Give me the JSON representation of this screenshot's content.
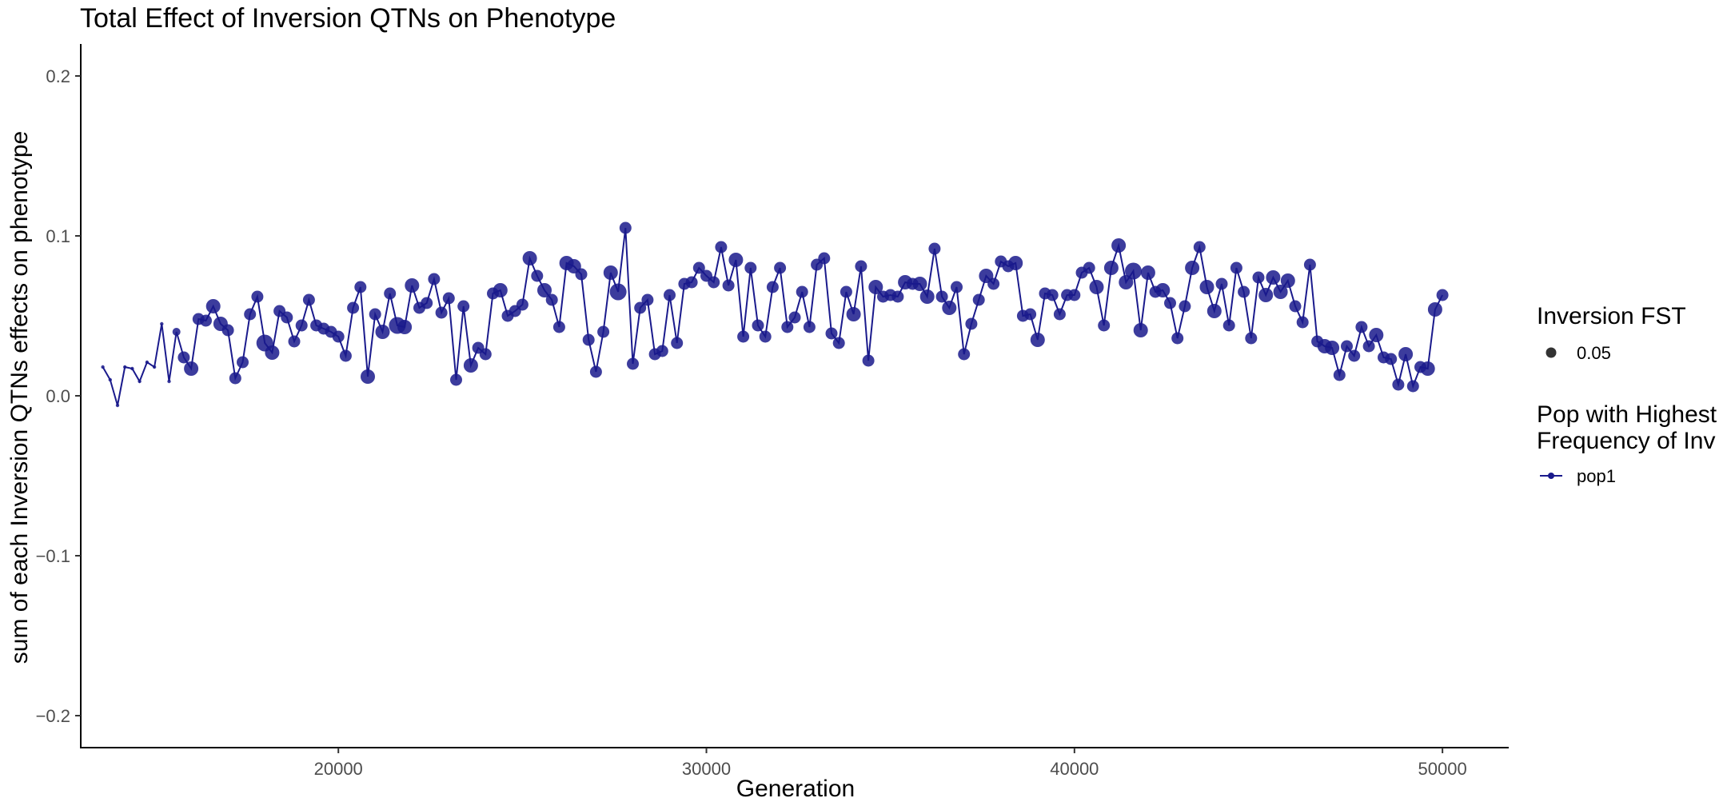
{
  "chart_data": {
    "type": "scatter",
    "title": "Total Effect of Inversion QTNs on Phenotype",
    "xlabel": "Generation",
    "ylabel": "sum of each Inversion QTNs effects on phenotype",
    "xlim": [
      13000,
      51800
    ],
    "ylim": [
      -0.22,
      0.22
    ],
    "x_ticks": [
      20000,
      30000,
      40000,
      50000
    ],
    "x_tick_labels": [
      "20000",
      "30000",
      "40000",
      "50000"
    ],
    "y_ticks": [
      -0.2,
      -0.1,
      0.0,
      0.1,
      0.2
    ],
    "y_tick_labels": [
      "−0.2",
      "−0.1",
      "0.0",
      "0.1",
      "0.2"
    ],
    "grid": false,
    "legend_position": "right",
    "legends": {
      "size": {
        "title": "Inversion FST",
        "entries": [
          "0.05"
        ]
      },
      "color": {
        "title": "Pop with Highest Frequency of Inv",
        "title_lines": [
          "Pop with Highest",
          "Frequency of Inv"
        ],
        "entries": [
          "pop1"
        ]
      }
    },
    "series": [
      {
        "name": "pop1",
        "color": "#1a1a8c",
        "x": [
          13600,
          13800,
          14000,
          14200,
          14400,
          14600,
          14800,
          15000,
          15200,
          15400,
          15600,
          15800,
          16000,
          16200,
          16400,
          16600,
          16800,
          17000,
          17200,
          17400,
          17600,
          17800,
          18000,
          18200,
          18400,
          18600,
          18800,
          19000,
          19200,
          19400,
          19600,
          19800,
          20000,
          20200,
          20400,
          20600,
          20800,
          21000,
          21200,
          21400,
          21600,
          21800,
          22000,
          22200,
          22400,
          22600,
          22800,
          23000,
          23200,
          23400,
          23600,
          23800,
          24000,
          24200,
          24400,
          24600,
          24800,
          25000,
          25200,
          25400,
          25600,
          25800,
          26000,
          26200,
          26400,
          26600,
          26800,
          27000,
          27200,
          27400,
          27600,
          27800,
          28000,
          28200,
          28400,
          28600,
          28800,
          29000,
          29200,
          29400,
          29600,
          29800,
          30000,
          30200,
          30400,
          30600,
          30800,
          31000,
          31200,
          31400,
          31600,
          31800,
          32000,
          32200,
          32400,
          32600,
          32800,
          33000,
          33200,
          33400,
          33600,
          33800,
          34000,
          34200,
          34400,
          34600,
          34800,
          35000,
          35200,
          35400,
          35600,
          35800,
          36000,
          36200,
          36400,
          36600,
          36800,
          37000,
          37200,
          37400,
          37600,
          37800,
          38000,
          38200,
          38400,
          38600,
          38800,
          39000,
          39200,
          39400,
          39600,
          39800,
          40000,
          40200,
          40400,
          40600,
          40800,
          41000,
          41200,
          41400,
          41600,
          41800,
          42000,
          42200,
          42400,
          42600,
          42800,
          43000,
          43200,
          43400,
          43600,
          43800,
          44000,
          44200,
          44400,
          44600,
          44800,
          45000,
          45200,
          45400,
          45600,
          45800,
          46000,
          46200,
          46400,
          46600,
          46800,
          47000,
          47200,
          47400,
          47600,
          47800,
          48000,
          48200,
          48400,
          48600,
          48800,
          49000,
          49200,
          49400,
          49600,
          49800,
          50000
        ],
        "y": [
          0.018,
          0.01,
          -0.006,
          0.018,
          0.017,
          0.009,
          0.021,
          0.018,
          0.045,
          0.009,
          0.04,
          0.024,
          0.017,
          0.048,
          0.047,
          0.056,
          0.045,
          0.041,
          0.011,
          0.021,
          0.051,
          0.062,
          0.033,
          0.027,
          0.053,
          0.049,
          0.034,
          0.044,
          0.06,
          0.044,
          0.042,
          0.04,
          0.037,
          0.025,
          0.055,
          0.068,
          0.012,
          0.051,
          0.04,
          0.064,
          0.044,
          0.043,
          0.069,
          0.055,
          0.058,
          0.073,
          0.052,
          0.061,
          0.01,
          0.056,
          0.019,
          0.03,
          0.026,
          0.064,
          0.066,
          0.05,
          0.053,
          0.057,
          0.086,
          0.075,
          0.066,
          0.06,
          0.043,
          0.083,
          0.081,
          0.076,
          0.035,
          0.015,
          0.04,
          0.077,
          0.065,
          0.105,
          0.02,
          0.055,
          0.06,
          0.026,
          0.028,
          0.063,
          0.033,
          0.07,
          0.071,
          0.08,
          0.075,
          0.071,
          0.093,
          0.069,
          0.085,
          0.037,
          0.08,
          0.044,
          0.037,
          0.068,
          0.08,
          0.043,
          0.049,
          0.065,
          0.043,
          0.082,
          0.086,
          0.039,
          0.033,
          0.065,
          0.051,
          0.081,
          0.022,
          0.068,
          0.062,
          0.063,
          0.062,
          0.071,
          0.07,
          0.07,
          0.062,
          0.092,
          0.062,
          0.055,
          0.068,
          0.026,
          0.045,
          0.06,
          0.075,
          0.07,
          0.084,
          0.081,
          0.083,
          0.05,
          0.051,
          0.035,
          0.064,
          0.063,
          0.051,
          0.063,
          0.063,
          0.077,
          0.08,
          0.068,
          0.044,
          0.08,
          0.094,
          0.071,
          0.078,
          0.041,
          0.077,
          0.065,
          0.066,
          0.058,
          0.036,
          0.056,
          0.08,
          0.093,
          0.068,
          0.053,
          0.07,
          0.044,
          0.08,
          0.065,
          0.036,
          0.074,
          0.063,
          0.074,
          0.065,
          0.072,
          0.056,
          0.046,
          0.082,
          0.034,
          0.031,
          0.03,
          0.013,
          0.031,
          0.025,
          0.043,
          0.031,
          0.038,
          0.024,
          0.023,
          0.007,
          0.026,
          0.006,
          0.018,
          0.017,
          0.054,
          0.063
        ],
        "point_size": [
          1,
          1,
          1,
          1,
          1,
          1,
          1,
          1,
          1,
          1,
          2,
          3,
          4,
          3,
          3,
          4,
          4,
          3,
          3,
          3,
          3,
          3,
          5,
          4,
          3,
          3,
          3,
          3,
          3,
          3,
          3,
          3,
          3,
          3,
          3,
          3,
          4,
          3,
          4,
          3,
          5,
          4,
          4,
          3,
          3,
          3,
          3,
          3,
          3,
          3,
          4,
          3,
          3,
          3,
          4,
          3,
          3,
          3,
          4,
          3,
          4,
          3,
          3,
          4,
          4,
          3,
          3,
          3,
          3,
          4,
          5,
          3,
          3,
          3,
          3,
          3,
          3,
          3,
          3,
          3,
          3,
          3,
          3,
          3,
          3,
          3,
          4,
          3,
          3,
          3,
          3,
          3,
          3,
          3,
          3,
          3,
          3,
          3,
          3,
          3,
          3,
          3,
          4,
          3,
          3,
          4,
          3,
          3,
          3,
          4,
          3,
          4,
          4,
          3,
          3,
          4,
          3,
          3,
          3,
          3,
          4,
          3,
          3,
          3,
          4,
          3,
          3,
          4,
          3,
          3,
          3,
          3,
          3,
          3,
          3,
          4,
          3,
          4,
          4,
          4,
          5,
          4,
          4,
          3,
          4,
          3,
          3,
          3,
          4,
          3,
          4,
          4,
          3,
          3,
          3,
          3,
          3,
          3,
          4,
          4,
          4,
          4,
          3,
          3,
          3,
          3,
          4,
          4,
          3,
          3,
          3,
          3,
          3,
          4,
          3,
          3,
          3,
          4,
          3,
          3,
          4,
          4,
          3,
          4,
          3
        ]
      }
    ]
  }
}
